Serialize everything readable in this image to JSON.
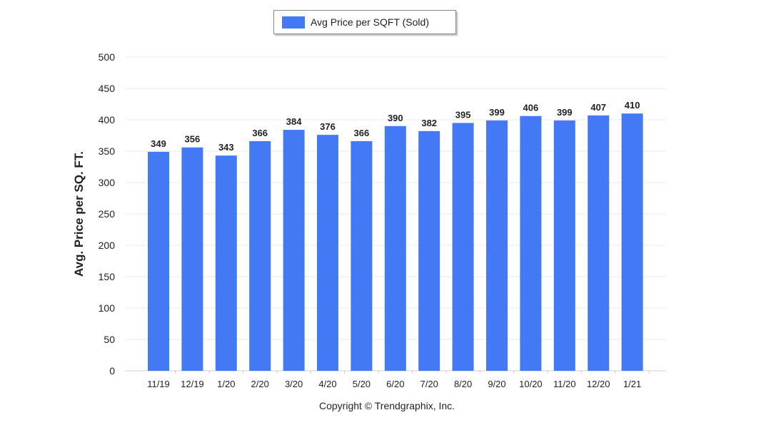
{
  "legend": {
    "label": "Avg Price per SQFT (Sold)"
  },
  "colors": {
    "bar": "#4479F5",
    "grid": "#E8E8E8",
    "axis": "#CCCCCC",
    "text": "#222222"
  },
  "footer": {
    "copyright": "Copyright © Trendgraphix, Inc."
  },
  "chart_data": {
    "type": "bar",
    "ylabel": "Avg. Price per SQ. FT.",
    "ylim": [
      0,
      500
    ],
    "yticks": [
      0,
      50,
      100,
      150,
      200,
      250,
      300,
      350,
      400,
      450,
      500
    ],
    "categories": [
      "11/19",
      "12/19",
      "1/20",
      "2/20",
      "3/20",
      "4/20",
      "5/20",
      "6/20",
      "7/20",
      "8/20",
      "9/20",
      "10/20",
      "11/20",
      "12/20",
      "1/21"
    ],
    "series": [
      {
        "name": "Avg Price per SQFT (Sold)",
        "values": [
          349,
          356,
          343,
          366,
          384,
          376,
          366,
          390,
          382,
          395,
          399,
          406,
          399,
          407,
          410
        ]
      }
    ],
    "legend": "top-center",
    "grid": true,
    "data_labels": true
  }
}
